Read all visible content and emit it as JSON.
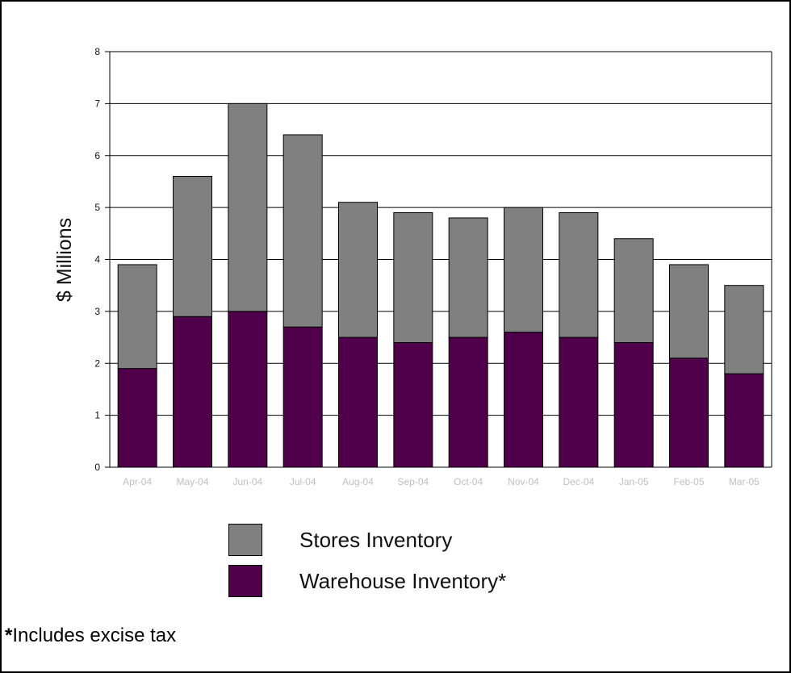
{
  "chart_data": {
    "type": "bar",
    "stacked": true,
    "categories": [
      "Apr-04",
      "May-04",
      "Jun-04",
      "Jul-04",
      "Aug-04",
      "Sep-04",
      "Oct-04",
      "Nov-04",
      "Dec-04",
      "Jan-05",
      "Feb-05",
      "Mar-05"
    ],
    "series": [
      {
        "name": "Warehouse Inventory*",
        "color": "#50004a",
        "values": [
          1.9,
          2.9,
          3.0,
          2.7,
          2.5,
          2.4,
          2.5,
          2.6,
          2.5,
          2.4,
          2.1,
          1.8
        ]
      },
      {
        "name": "Stores Inventory",
        "color": "#808080",
        "values": [
          2.0,
          2.7,
          4.0,
          3.7,
          2.6,
          2.5,
          2.3,
          2.4,
          2.4,
          2.0,
          1.8,
          1.7
        ]
      }
    ],
    "totals": [
      3.9,
      5.6,
      7.0,
      6.4,
      5.1,
      4.9,
      4.8,
      5.0,
      4.9,
      4.4,
      3.9,
      3.5
    ],
    "ylabel": "$ Millions",
    "ylim": [
      0,
      8
    ],
    "yticks": [
      "0",
      "1",
      "2",
      "3",
      "4",
      "5",
      "6",
      "7",
      "8"
    ],
    "grid": true,
    "legend_position": "bottom"
  },
  "legend": {
    "stores_label": "Stores Inventory",
    "warehouse_label": "Warehouse Inventory*"
  },
  "footnote": {
    "star": "*",
    "text": "Includes excise tax"
  }
}
